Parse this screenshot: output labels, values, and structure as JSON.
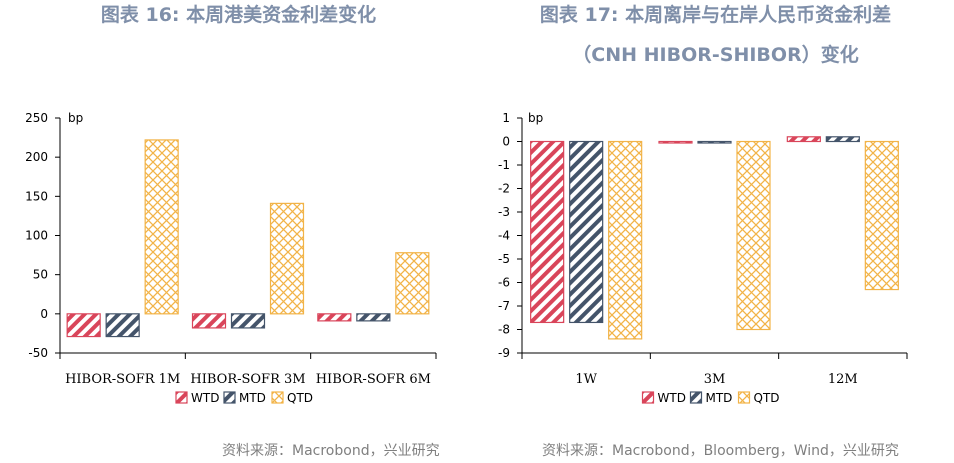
{
  "charts": [
    {
      "title_lines": [
        "图表 16: 本周港美资金利差变化"
      ],
      "source": "资料来源：Macrobond，兴业研究",
      "chart_data": {
        "type": "bar",
        "unit_label": "bp",
        "categories": [
          "HIBOR-SOFR 1M",
          "HIBOR-SOFR 3M",
          "HIBOR-SOFR 6M"
        ],
        "series": [
          {
            "name": "WTD",
            "values": [
              -29,
              -18,
              -9
            ],
            "color": "#d9455a",
            "pattern": "stripe-red"
          },
          {
            "name": "MTD",
            "values": [
              -29,
              -18,
              -9
            ],
            "color": "#44546a",
            "pattern": "stripe-navy"
          },
          {
            "name": "QTD",
            "values": [
              222,
              141,
              78
            ],
            "color": "#f2b347",
            "pattern": "cross-orange"
          }
        ],
        "ylim": [
          -50,
          250
        ],
        "yticks": [
          250,
          200,
          150,
          100,
          50,
          0,
          -50
        ],
        "legend": "bottom"
      }
    },
    {
      "title_lines": [
        "图表 17: 本周离岸与在岸人民币资金利差",
        "（CNH HIBOR-SHIBOR）变化"
      ],
      "source": "资料来源：Macrobond，Bloomberg，Wind，兴业研究",
      "chart_data": {
        "type": "bar",
        "unit_label": "bp",
        "categories": [
          "1W",
          "3M",
          "12M"
        ],
        "series": [
          {
            "name": "WTD",
            "values": [
              -7.7,
              -0.05,
              0.2
            ],
            "color": "#d9455a",
            "pattern": "stripe-red"
          },
          {
            "name": "MTD",
            "values": [
              -7.7,
              -0.05,
              0.2
            ],
            "color": "#44546a",
            "pattern": "stripe-navy"
          },
          {
            "name": "QTD",
            "values": [
              -8.4,
              -8.0,
              -6.3
            ],
            "color": "#f2b347",
            "pattern": "cross-orange"
          }
        ],
        "ylim": [
          -9,
          1
        ],
        "yticks": [
          1,
          0,
          -1,
          -2,
          -3,
          -4,
          -5,
          -6,
          -7,
          -8,
          -9
        ],
        "legend": "bottom"
      }
    }
  ]
}
